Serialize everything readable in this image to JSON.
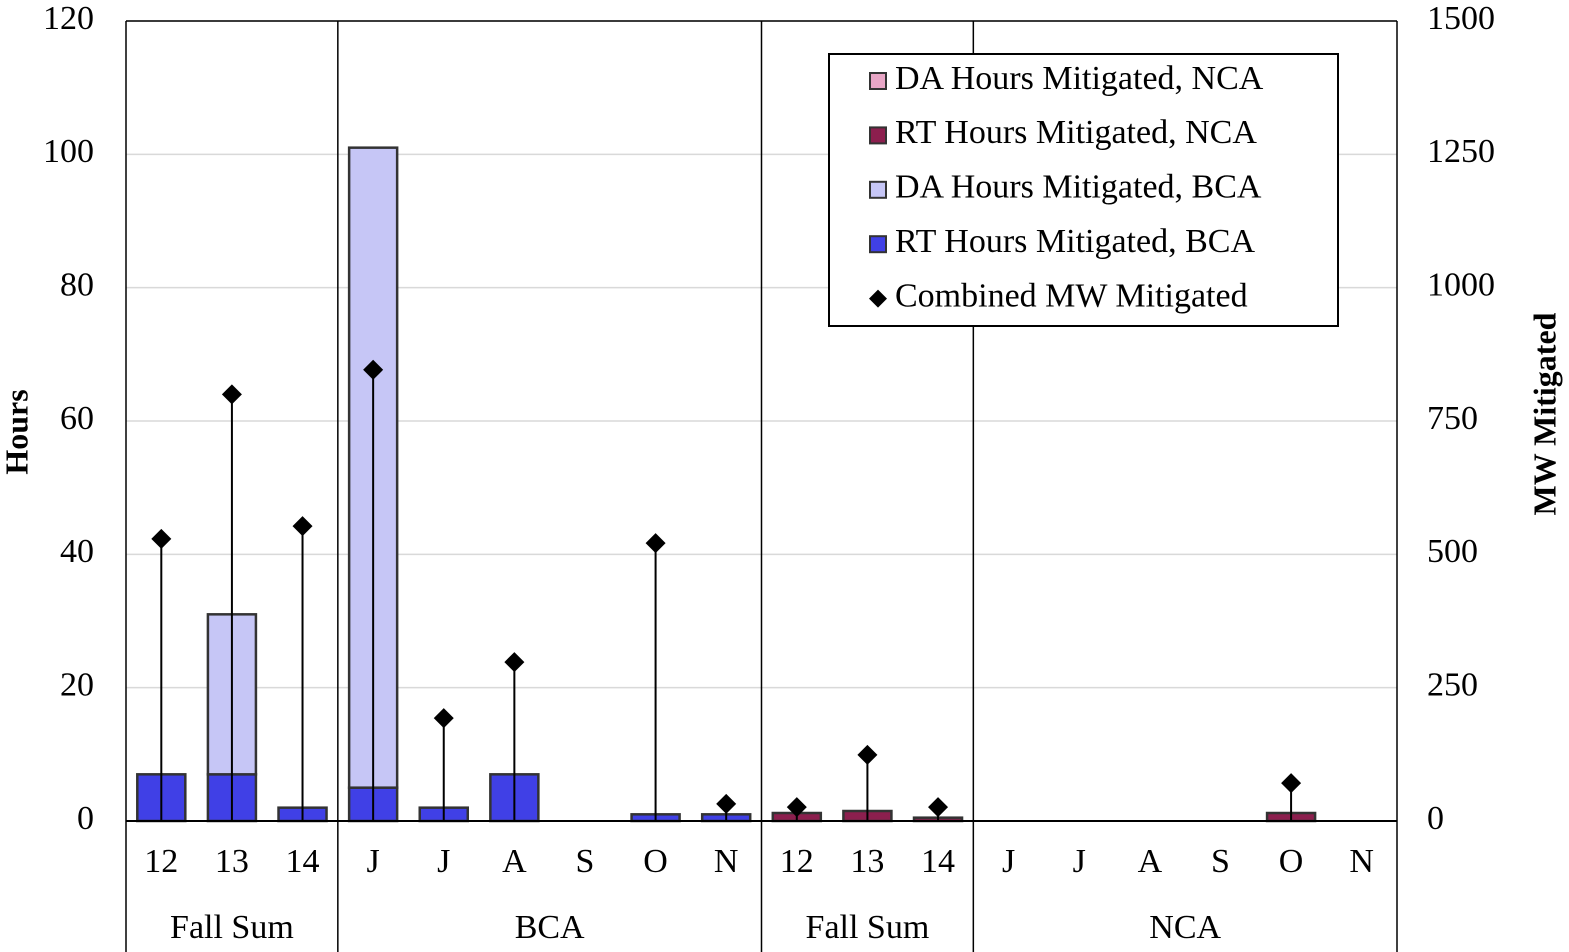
{
  "chart_data": {
    "type": "bar",
    "y_label": "Hours",
    "y2_label": "MW Mitigated",
    "categories": [
      "12",
      "13",
      "14",
      "J",
      "J",
      "A",
      "S",
      "O",
      "N",
      "12",
      "13",
      "14",
      "J",
      "J",
      "A",
      "S",
      "O",
      "N"
    ],
    "category_groups": [
      "Fall Sum",
      "Fall Sum",
      "Fall Sum",
      "BCA",
      "BCA",
      "BCA",
      "BCA",
      "BCA",
      "BCA",
      "Fall Sum",
      "Fall Sum",
      "Fall Sum",
      "NCA",
      "NCA",
      "NCA",
      "NCA",
      "NCA",
      "NCA"
    ],
    "stacked": true,
    "grid": true,
    "legend": "upper right",
    "series": [
      {
        "name": "DA Hours Mitigated, NCA",
        "color": "#e8a6c6",
        "values": [
          0,
          0,
          0,
          0,
          0,
          0,
          0,
          0,
          0,
          0,
          0,
          0,
          0,
          0,
          0,
          0,
          0,
          0
        ],
        "stack_order": 4
      },
      {
        "name": "RT Hours Mitigated, NCA",
        "color": "#8c1f4e",
        "values": [
          0,
          0,
          0,
          0,
          0,
          0,
          0,
          0,
          0,
          1.2,
          1.5,
          0.5,
          0,
          0,
          0,
          0,
          1.2,
          0
        ],
        "stack_order": 3
      },
      {
        "name": "DA Hours Mitigated, BCA",
        "color": "#c6c6f6",
        "values": [
          0,
          24,
          0,
          96,
          0,
          0,
          0,
          0,
          0,
          0,
          0,
          0,
          0,
          0,
          0,
          0,
          0,
          0
        ],
        "stack_order": 2
      },
      {
        "name": "RT Hours Mitigated, BCA",
        "color": "#4040e6",
        "values": [
          7,
          7,
          2,
          5,
          2,
          7,
          0,
          1,
          1,
          0,
          0,
          0,
          0,
          0,
          0,
          0,
          0,
          0
        ],
        "stack_order": 1
      },
      {
        "name": "Combined MW Mitigated",
        "color": "#000000",
        "type": "stem",
        "axis": "y2",
        "values": [
          529,
          800,
          553,
          846,
          193,
          298,
          null,
          521,
          32,
          26,
          124,
          26,
          null,
          null,
          null,
          null,
          71,
          null
        ]
      }
    ],
    "ylim": [
      0,
      120
    ],
    "yticks": [
      0,
      20,
      40,
      60,
      80,
      100,
      120
    ],
    "y2lim": [
      0,
      1500
    ],
    "y2ticks": [
      0,
      250,
      500,
      750,
      1000,
      1250,
      1500
    ]
  }
}
